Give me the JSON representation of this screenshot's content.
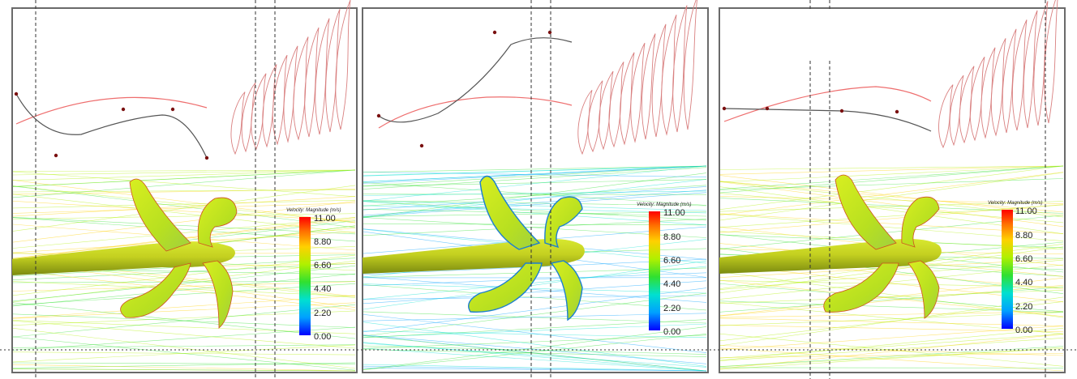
{
  "panels": [
    {
      "id": "left",
      "legend": {
        "title": "Velocity: Magnitude (m/s)",
        "ticks": [
          "11.00",
          "8.80",
          "6.60",
          "4.40",
          "2.20",
          "0.00"
        ]
      }
    },
    {
      "id": "middle",
      "legend": {
        "title": "Velocity: Magnitude (m/s)",
        "ticks": [
          "11.00",
          "8.80",
          "6.60",
          "4.40",
          "2.20",
          "0.00"
        ]
      }
    },
    {
      "id": "right",
      "legend": {
        "title": "Velocity: Magnitude (m/s)",
        "ticks": [
          "11.00",
          "8.80",
          "6.60",
          "4.40",
          "2.20",
          "0.00"
        ]
      }
    }
  ],
  "colormap": [
    "#0000ff",
    "#00a0ff",
    "#00e0d0",
    "#30e030",
    "#b0f000",
    "#ffd000",
    "#ff7000",
    "#ff0000"
  ],
  "colors": {
    "frame": "#6a6a6a",
    "profile_curve": "#ee6e6e",
    "control_curve": "#555555",
    "control_point": "#7a1010",
    "section_curve": "#d98080",
    "propeller": "#c9e81a",
    "hub": "#b8c81a"
  }
}
